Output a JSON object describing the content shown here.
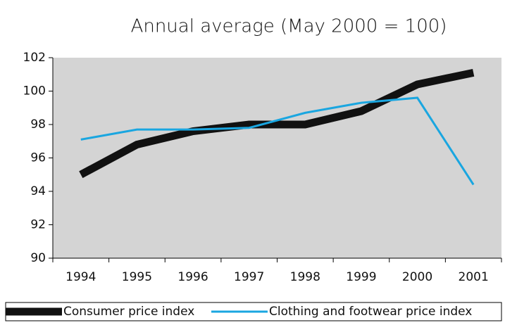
{
  "chart_data": {
    "type": "line",
    "title": "Annual average (May 2000 = 100)",
    "categories": [
      "1994",
      "1995",
      "1996",
      "1997",
      "1998",
      "1999",
      "2000",
      "2001"
    ],
    "series": [
      {
        "name": "Consumer price index",
        "color": "#111111",
        "values": [
          95.0,
          96.8,
          97.6,
          98.0,
          98.0,
          98.8,
          100.4,
          101.1
        ]
      },
      {
        "name": "Clothing and footwear price index",
        "color": "#1aa6e0",
        "values": [
          97.1,
          97.7,
          97.7,
          97.8,
          98.7,
          99.3,
          99.6,
          94.4
        ]
      }
    ],
    "ylim": [
      90,
      102
    ],
    "yticks": [
      90,
      92,
      94,
      96,
      98,
      100,
      102
    ],
    "legend": "bottom",
    "background": "#d4d4d4"
  }
}
